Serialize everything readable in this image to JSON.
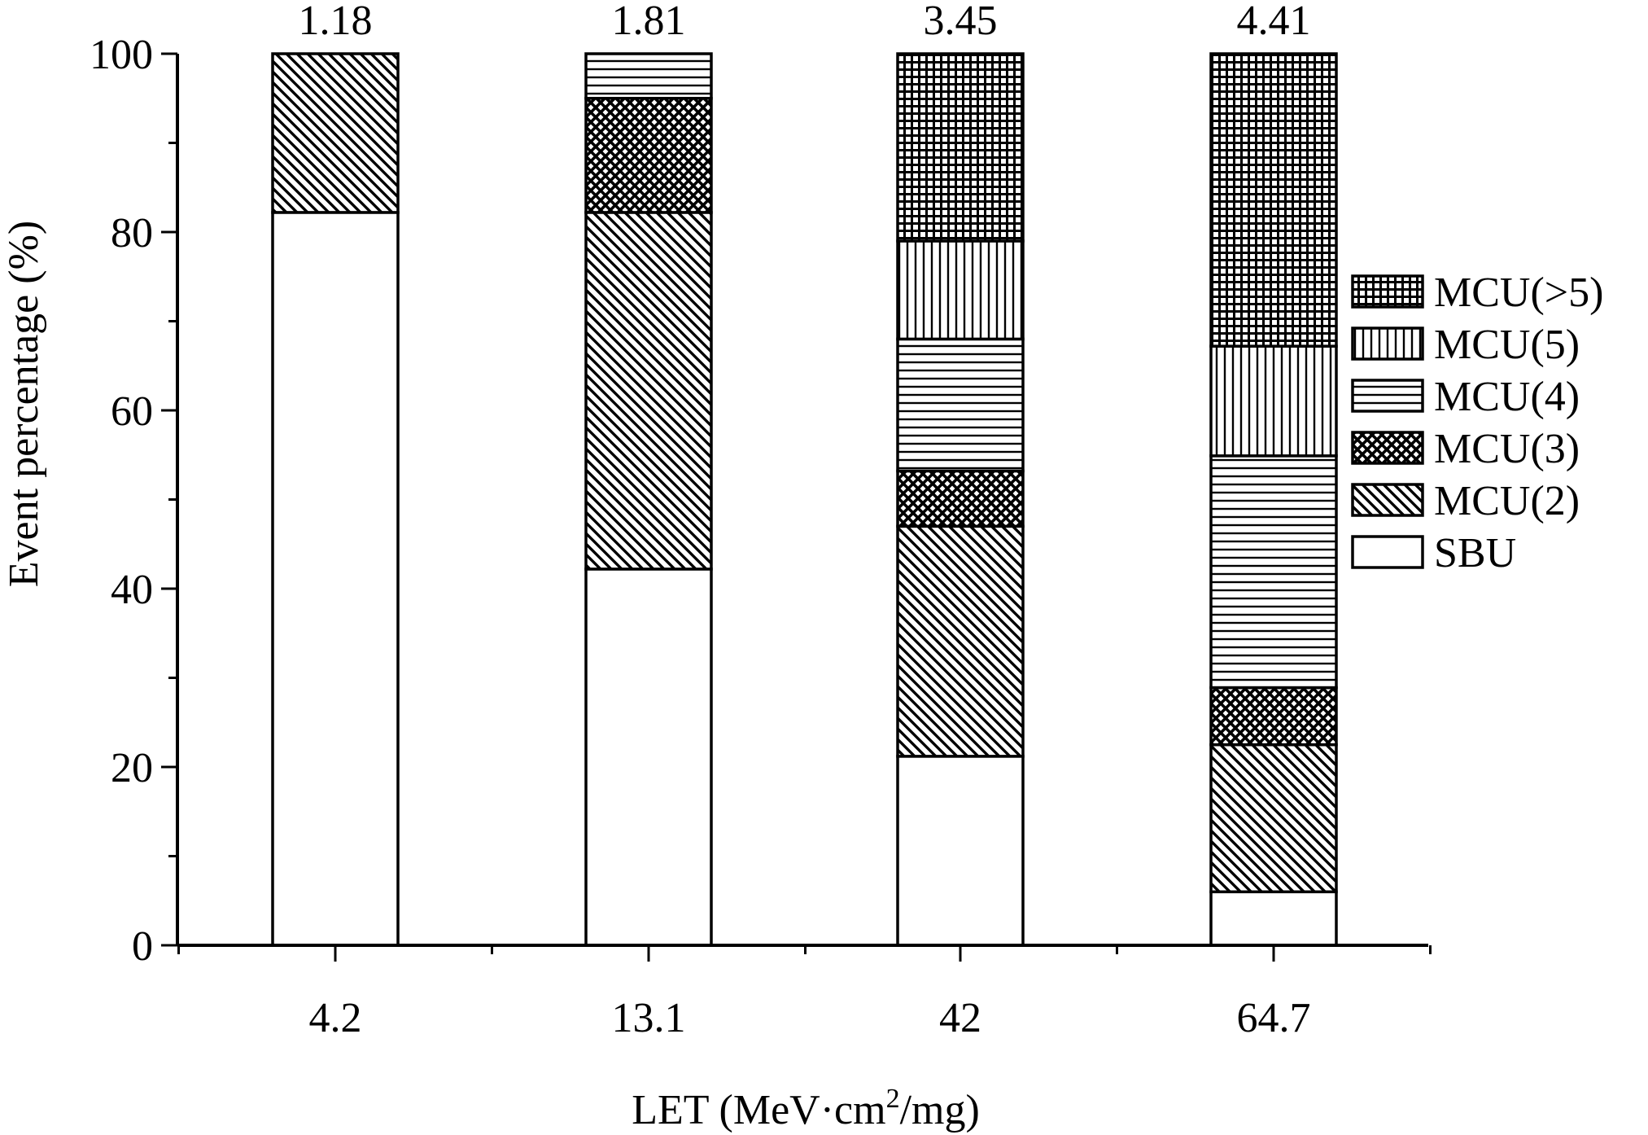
{
  "chart_data": {
    "type": "bar",
    "stacked": true,
    "categories": [
      "4.2",
      "13.1",
      "42",
      "64.7"
    ],
    "top_labels": [
      "1.18",
      "1.81",
      "3.45",
      "4.41"
    ],
    "xlabel": "LET (MeV·cm",
    "xlabel_sup": "2",
    "xlabel_tail": "/mg)",
    "ylabel": "Event percentage (%)",
    "ylim": [
      0,
      100
    ],
    "yticks": [
      "0",
      "20",
      "40",
      "60",
      "80",
      "100"
    ],
    "grid": false,
    "legend_position": "right",
    "legend_entries": [
      "MCU(>5)",
      "MCU(5)",
      "MCU(4)",
      "MCU(3)",
      "MCU(2)",
      "SBU"
    ],
    "series": [
      {
        "name": "SBU",
        "pattern": "none",
        "values": [
          82.2,
          42.2,
          21.2,
          6.0
        ]
      },
      {
        "name": "MCU(2)",
        "pattern": "diagonal",
        "values": [
          17.8,
          40.0,
          25.8,
          16.5
        ]
      },
      {
        "name": "MCU(3)",
        "pattern": "crosshatch",
        "values": [
          0,
          12.8,
          6.2,
          6.4
        ]
      },
      {
        "name": "MCU(4)",
        "pattern": "horizontal",
        "values": [
          0,
          5.0,
          14.8,
          26.0
        ]
      },
      {
        "name": "MCU(5)",
        "pattern": "vertical",
        "values": [
          0,
          0,
          11.0,
          12.3
        ]
      },
      {
        "name": "MCU(>5)",
        "pattern": "grid",
        "values": [
          0,
          0,
          21.0,
          32.8
        ]
      }
    ],
    "colors": {
      "stroke": "#000000",
      "fill": "#ffffff"
    }
  }
}
